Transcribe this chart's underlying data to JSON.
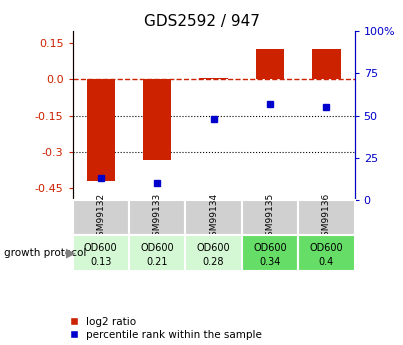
{
  "title": "GDS2592 / 947",
  "samples": [
    "GSM99132",
    "GSM99133",
    "GSM99134",
    "GSM99135",
    "GSM99136"
  ],
  "log2_ratio": [
    -0.42,
    -0.335,
    0.005,
    0.125,
    0.125
  ],
  "percentile_rank": [
    13,
    10,
    48,
    57,
    55
  ],
  "protocol_label": "growth protocol",
  "protocol_values": [
    [
      "OD600",
      "0.13"
    ],
    [
      "OD600",
      "0.21"
    ],
    [
      "OD600",
      "0.28"
    ],
    [
      "OD600",
      "0.34"
    ],
    [
      "OD600",
      "0.4"
    ]
  ],
  "protocol_colors": [
    "#d4f7d4",
    "#d4f7d4",
    "#d4f7d4",
    "#66dd66",
    "#66dd66"
  ],
  "ylim_left": [
    -0.5,
    0.2
  ],
  "ylim_right": [
    0,
    100
  ],
  "left_ticks": [
    0.15,
    0.0,
    -0.15,
    -0.3,
    -0.45
  ],
  "right_ticks": [
    100,
    75,
    50,
    25,
    0
  ],
  "hlines": [
    -0.15,
    -0.3
  ],
  "bar_color": "#cc2200",
  "dot_color": "#0000cc",
  "bar_width": 0.5,
  "legend_entries": [
    "log2 ratio",
    "percentile rank within the sample"
  ]
}
